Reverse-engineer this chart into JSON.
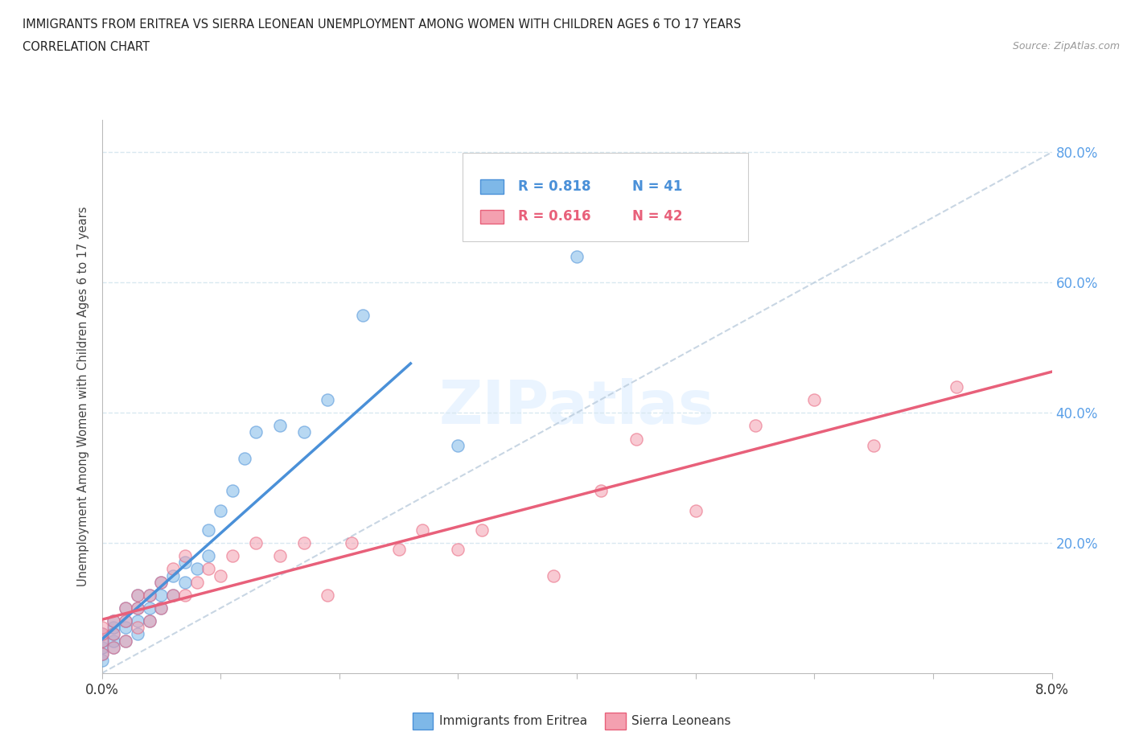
{
  "title_line1": "IMMIGRANTS FROM ERITREA VS SIERRA LEONEAN UNEMPLOYMENT AMONG WOMEN WITH CHILDREN AGES 6 TO 17 YEARS",
  "title_line2": "CORRELATION CHART",
  "source_text": "Source: ZipAtlas.com",
  "ylabel": "Unemployment Among Women with Children Ages 6 to 17 years",
  "xlim": [
    0.0,
    0.08
  ],
  "ylim": [
    0.0,
    0.85
  ],
  "legend_r1": "R = 0.818",
  "legend_n1": "N = 41",
  "legend_r2": "R = 0.616",
  "legend_n2": "N = 42",
  "color_eritrea": "#7eb8e8",
  "color_sierra": "#f4a0b0",
  "color_eritrea_line": "#4a90d8",
  "color_sierra_line": "#e8607a",
  "color_diagonal": "#bbccdd",
  "color_ytick_right": "#5ba0e8",
  "background_color": "#ffffff",
  "grid_color": "#d8e8f0",
  "eritrea_x": [
    0.0,
    0.0,
    0.0,
    0.0,
    0.0,
    0.001,
    0.001,
    0.001,
    0.001,
    0.001,
    0.002,
    0.002,
    0.002,
    0.002,
    0.003,
    0.003,
    0.003,
    0.003,
    0.004,
    0.004,
    0.004,
    0.005,
    0.005,
    0.005,
    0.006,
    0.006,
    0.007,
    0.007,
    0.008,
    0.009,
    0.009,
    0.01,
    0.011,
    0.012,
    0.013,
    0.015,
    0.017,
    0.019,
    0.022,
    0.03,
    0.04
  ],
  "eritrea_y": [
    0.02,
    0.03,
    0.04,
    0.05,
    0.06,
    0.04,
    0.05,
    0.06,
    0.07,
    0.08,
    0.05,
    0.07,
    0.08,
    0.1,
    0.06,
    0.08,
    0.1,
    0.12,
    0.08,
    0.1,
    0.12,
    0.1,
    0.12,
    0.14,
    0.12,
    0.15,
    0.14,
    0.17,
    0.16,
    0.18,
    0.22,
    0.25,
    0.28,
    0.33,
    0.37,
    0.38,
    0.37,
    0.42,
    0.55,
    0.35,
    0.64
  ],
  "sierra_x": [
    0.0,
    0.0,
    0.0,
    0.0,
    0.001,
    0.001,
    0.001,
    0.002,
    0.002,
    0.002,
    0.003,
    0.003,
    0.003,
    0.004,
    0.004,
    0.005,
    0.005,
    0.006,
    0.006,
    0.007,
    0.007,
    0.008,
    0.009,
    0.01,
    0.011,
    0.013,
    0.015,
    0.017,
    0.019,
    0.021,
    0.025,
    0.027,
    0.03,
    0.032,
    0.038,
    0.042,
    0.045,
    0.05,
    0.055,
    0.06,
    0.065,
    0.072
  ],
  "sierra_y": [
    0.03,
    0.05,
    0.06,
    0.07,
    0.04,
    0.06,
    0.08,
    0.05,
    0.08,
    0.1,
    0.07,
    0.1,
    0.12,
    0.08,
    0.12,
    0.1,
    0.14,
    0.12,
    0.16,
    0.12,
    0.18,
    0.14,
    0.16,
    0.15,
    0.18,
    0.2,
    0.18,
    0.2,
    0.12,
    0.2,
    0.19,
    0.22,
    0.19,
    0.22,
    0.15,
    0.28,
    0.36,
    0.25,
    0.38,
    0.42,
    0.35,
    0.44
  ],
  "bottom_legend_eritrea": "Immigrants from Eritrea",
  "bottom_legend_sierra": "Sierra Leoneans"
}
